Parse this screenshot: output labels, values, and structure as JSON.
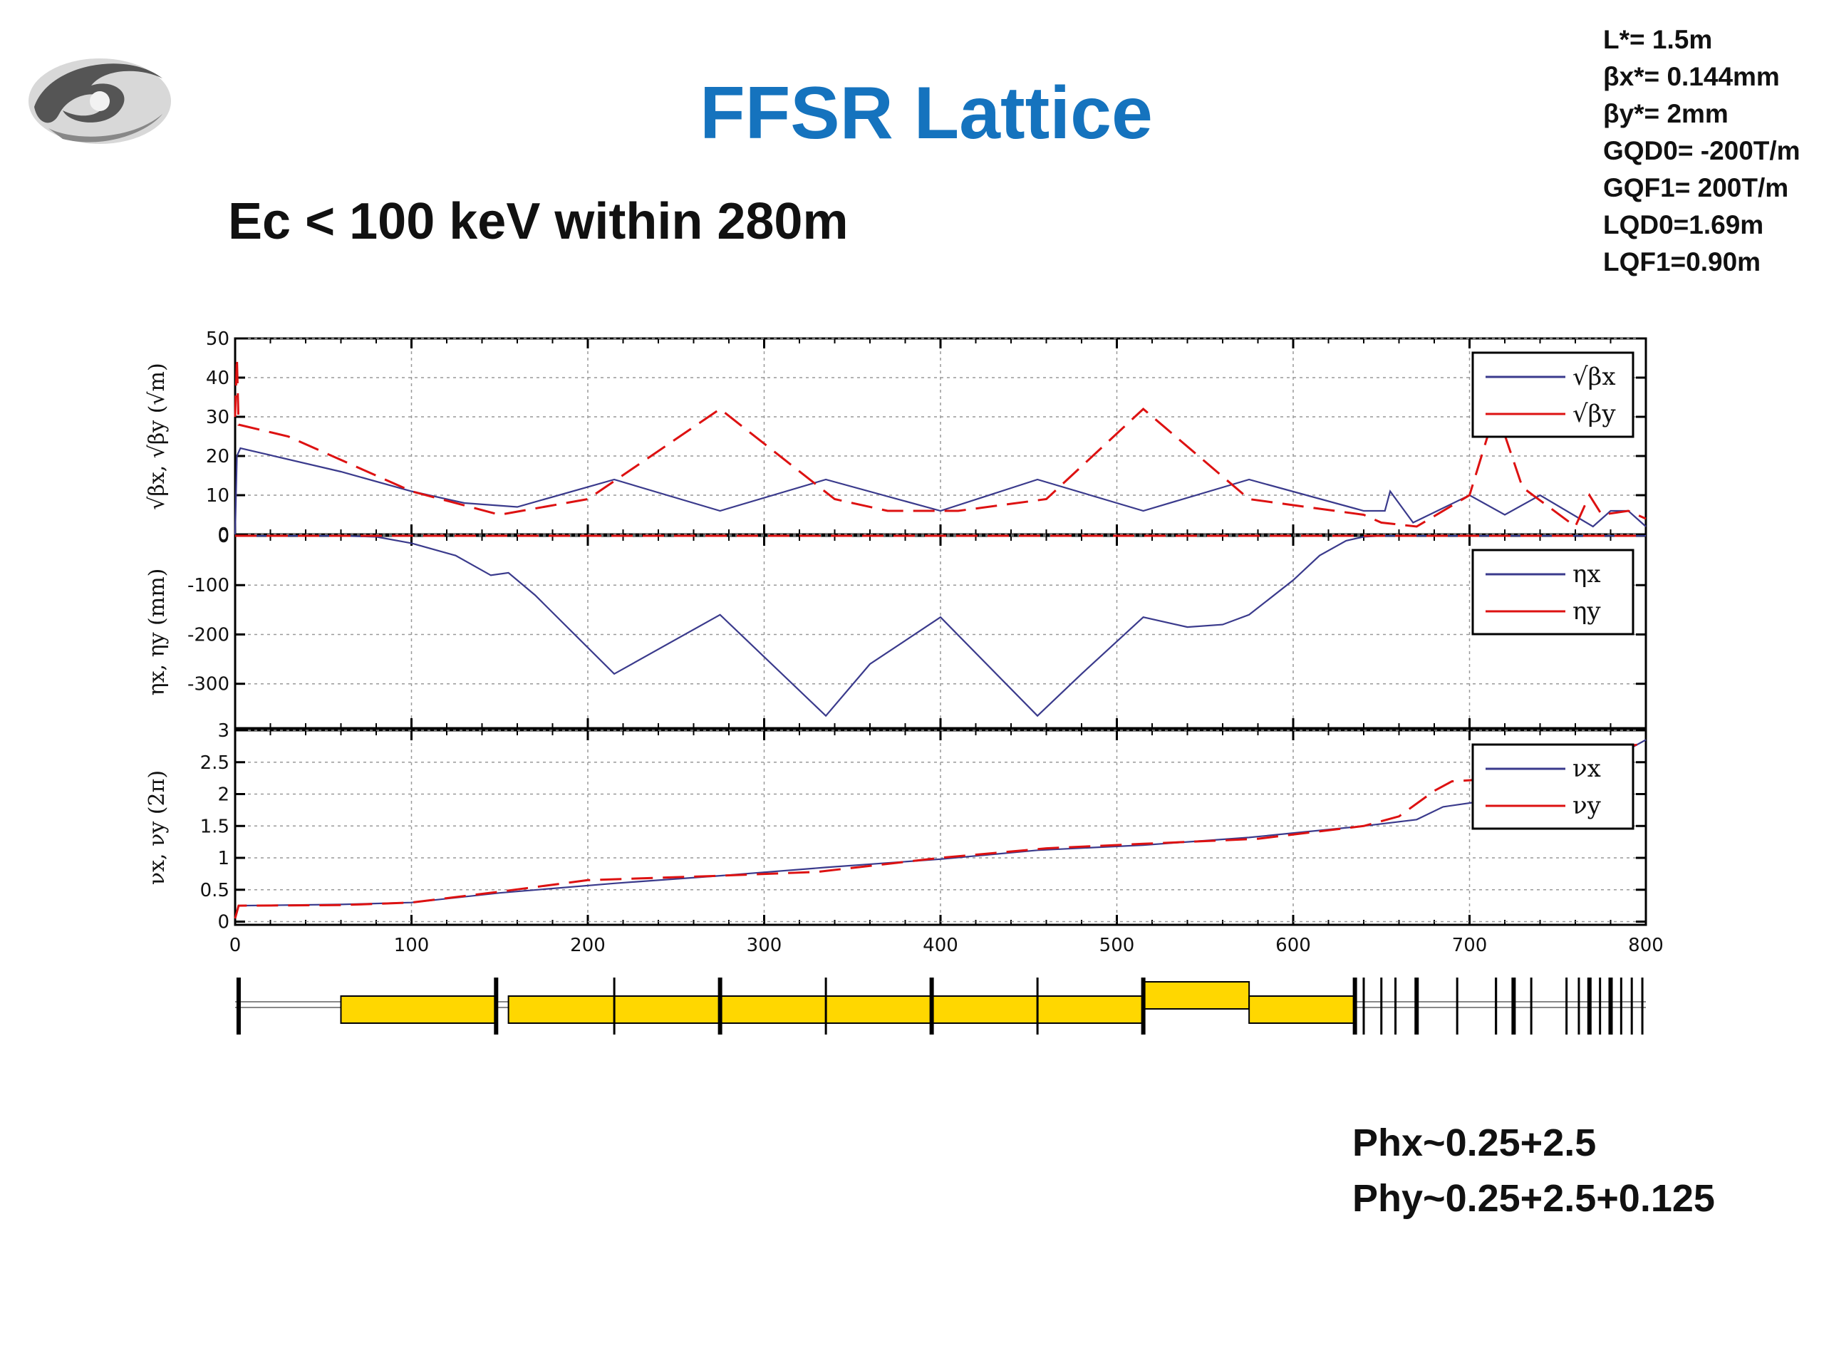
{
  "slide": {
    "title": "FFSR Lattice",
    "subtitle": "Ec < 100 keV within 280m",
    "params": [
      "L*= 1.5m",
      "βx*= 0.144mm",
      "βy*= 2mm",
      "GQD0= -200T/m",
      "GQF1= 200T/m",
      "LQD0=1.69m",
      "LQF1=0.90m"
    ],
    "phase": [
      "Phx~0.25+2.5",
      "Phy~0.25+2.5+0.125"
    ]
  },
  "colors": {
    "title": "#1573be",
    "x_series": "#3a3a8c",
    "y_series": "#dd1111",
    "magnet_fill": "#ffd700"
  },
  "chart_data": [
    {
      "type": "line",
      "ylabel": "√βx, √βy (√m)",
      "xlim": [
        0,
        800
      ],
      "ylim": [
        0,
        50
      ],
      "yticks": [
        0,
        10,
        20,
        30,
        40,
        50
      ],
      "grid": true,
      "legend_position": "top-right",
      "series": [
        {
          "name": "√βx",
          "style": "solid",
          "points": [
            [
              0,
              0
            ],
            [
              1,
              20
            ],
            [
              3,
              22
            ],
            [
              60,
              16
            ],
            [
              100,
              11
            ],
            [
              130,
              8
            ],
            [
              160,
              7
            ],
            [
              215,
              14
            ],
            [
              275,
              6
            ],
            [
              335,
              14
            ],
            [
              400,
              6
            ],
            [
              455,
              14
            ],
            [
              515,
              6
            ],
            [
              575,
              14
            ],
            [
              640,
              6
            ],
            [
              651,
              6
            ],
            [
              652,
              6
            ],
            [
              655,
              11
            ],
            [
              668,
              3
            ],
            [
              700,
              10
            ],
            [
              720,
              5
            ],
            [
              740,
              10
            ],
            [
              770,
              2
            ],
            [
              780,
              6
            ],
            [
              790,
              6
            ],
            [
              800,
              2
            ]
          ]
        },
        {
          "name": "√βy",
          "style": "dashed",
          "points": [
            [
              0,
              30
            ],
            [
              1,
              45
            ],
            [
              2,
              28
            ],
            [
              30,
              25
            ],
            [
              100,
              11
            ],
            [
              150,
              5
            ],
            [
              200,
              9
            ],
            [
              275,
              32
            ],
            [
              340,
              9
            ],
            [
              370,
              6
            ],
            [
              410,
              6
            ],
            [
              460,
              9
            ],
            [
              515,
              32
            ],
            [
              575,
              9
            ],
            [
              640,
              5
            ],
            [
              650,
              3
            ],
            [
              670,
              2
            ],
            [
              700,
              10
            ],
            [
              715,
              32
            ],
            [
              730,
              12
            ],
            [
              760,
              2
            ],
            [
              768,
              10
            ],
            [
              775,
              5
            ],
            [
              790,
              6
            ],
            [
              800,
              4
            ]
          ]
        }
      ]
    },
    {
      "type": "line",
      "ylabel": "ηx, ηy (mm)",
      "xlim": [
        0,
        800
      ],
      "ylim": [
        -390,
        0
      ],
      "yticks": [
        -300,
        -200,
        -100,
        0
      ],
      "grid": true,
      "legend_position": "top-right",
      "series": [
        {
          "name": "ηx",
          "style": "solid",
          "points": [
            [
              0,
              0
            ],
            [
              60,
              0
            ],
            [
              80,
              -2
            ],
            [
              100,
              -15
            ],
            [
              125,
              -40
            ],
            [
              145,
              -80
            ],
            [
              155,
              -75
            ],
            [
              170,
              -120
            ],
            [
              215,
              -280
            ],
            [
              275,
              -160
            ],
            [
              335,
              -365
            ],
            [
              360,
              -260
            ],
            [
              400,
              -165
            ],
            [
              455,
              -365
            ],
            [
              480,
              -280
            ],
            [
              515,
              -165
            ],
            [
              540,
              -185
            ],
            [
              560,
              -180
            ],
            [
              575,
              -160
            ],
            [
              600,
              -90
            ],
            [
              615,
              -40
            ],
            [
              630,
              -10
            ],
            [
              640,
              -2
            ],
            [
              650,
              0
            ],
            [
              800,
              0
            ]
          ]
        },
        {
          "name": "ηy",
          "style": "dashed",
          "points": [
            [
              0,
              0
            ],
            [
              800,
              0
            ]
          ]
        }
      ]
    },
    {
      "type": "line",
      "ylabel": "νx, νy (2π)",
      "xlim": [
        0,
        800
      ],
      "ylim": [
        -0.05,
        3
      ],
      "yticks": [
        0,
        0.5,
        1,
        1.5,
        2,
        2.5,
        3
      ],
      "grid": true,
      "legend_position": "top-right",
      "series": [
        {
          "name": "νx",
          "style": "solid",
          "points": [
            [
              0,
              0.05
            ],
            [
              2,
              0.25
            ],
            [
              60,
              0.27
            ],
            [
              100,
              0.3
            ],
            [
              150,
              0.45
            ],
            [
              215,
              0.6
            ],
            [
              275,
              0.72
            ],
            [
              335,
              0.85
            ],
            [
              400,
              0.98
            ],
            [
              455,
              1.12
            ],
            [
              515,
              1.2
            ],
            [
              575,
              1.32
            ],
            [
              640,
              1.5
            ],
            [
              670,
              1.6
            ],
            [
              685,
              1.8
            ],
            [
              710,
              1.9
            ],
            [
              760,
              2.15
            ],
            [
              780,
              2.55
            ],
            [
              800,
              2.85
            ]
          ]
        },
        {
          "name": "νy",
          "style": "dashed",
          "points": [
            [
              0,
              0.05
            ],
            [
              2,
              0.25
            ],
            [
              60,
              0.26
            ],
            [
              100,
              0.3
            ],
            [
              150,
              0.47
            ],
            [
              200,
              0.65
            ],
            [
              275,
              0.72
            ],
            [
              330,
              0.78
            ],
            [
              400,
              1.0
            ],
            [
              460,
              1.15
            ],
            [
              515,
              1.22
            ],
            [
              580,
              1.3
            ],
            [
              640,
              1.5
            ],
            [
              660,
              1.65
            ],
            [
              680,
              2.05
            ],
            [
              690,
              2.2
            ],
            [
              720,
              2.25
            ],
            [
              760,
              2.45
            ],
            [
              790,
              2.75
            ],
            [
              800,
              2.8
            ]
          ]
        }
      ]
    }
  ],
  "x_axis": {
    "ticks": [
      0,
      100,
      200,
      300,
      400,
      500,
      600,
      700,
      800
    ]
  },
  "beamline": {
    "dipoles": [
      [
        60,
        148,
        "low"
      ],
      [
        155,
        275,
        "low"
      ],
      [
        275,
        395,
        "low"
      ],
      [
        395,
        515,
        "low"
      ],
      [
        515,
        575,
        "high"
      ],
      [
        575,
        635,
        "low"
      ]
    ],
    "quads": [
      [
        2,
        "thick"
      ],
      [
        148,
        "thick"
      ],
      [
        215,
        "thin"
      ],
      [
        275,
        "thick"
      ],
      [
        335,
        "thin"
      ],
      [
        395,
        "thick"
      ],
      [
        455,
        "thin"
      ],
      [
        515,
        "thick"
      ],
      [
        635,
        "thick"
      ],
      [
        640,
        "thin"
      ],
      [
        650,
        "thin"
      ],
      [
        658,
        "thin"
      ],
      [
        670,
        "thick"
      ],
      [
        693,
        "thin"
      ],
      [
        715,
        "thin"
      ],
      [
        715,
        "thin"
      ],
      [
        725,
        "thick"
      ],
      [
        735,
        "thin"
      ],
      [
        755,
        "thin"
      ],
      [
        762,
        "thin"
      ],
      [
        768,
        "thick"
      ],
      [
        774,
        "thin"
      ],
      [
        780,
        "thick"
      ],
      [
        786,
        "thin"
      ],
      [
        792,
        "thin"
      ],
      [
        798,
        "thin"
      ]
    ]
  }
}
